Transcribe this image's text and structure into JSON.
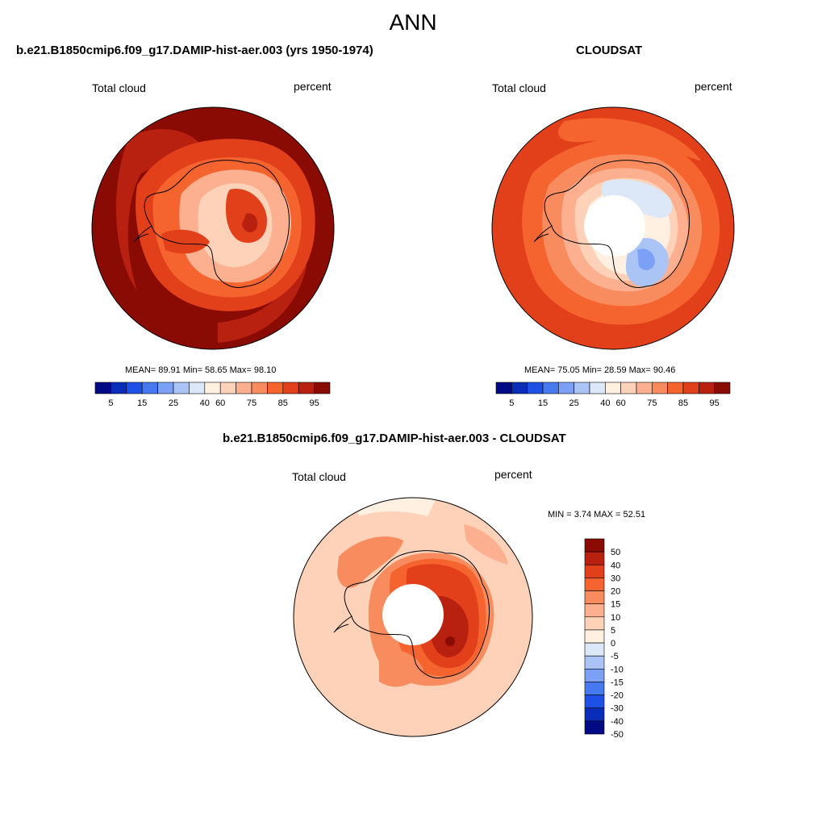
{
  "figure_title": "ANN",
  "panels": [
    {
      "title": "b.e21.B1850cmip6.f09_g17.DAMIP-hist-aer.003 (yrs 1950-1974)",
      "left_label": "Total cloud",
      "right_label": "percent",
      "stats": "MEAN=  89.91  Min=  58.65  Max=  98.10",
      "colorbar_ticks": [
        "5",
        "15",
        "25",
        "40",
        "60",
        "75",
        "85",
        "95"
      ]
    },
    {
      "title": "CLOUDSAT",
      "left_label": "Total cloud",
      "right_label": "percent",
      "stats": "MEAN=  75.05  Min=  28.59  Max=  90.46",
      "colorbar_ticks": [
        "5",
        "15",
        "25",
        "40",
        "60",
        "75",
        "85",
        "95"
      ]
    },
    {
      "title": "b.e21.B1850cmip6.f09_g17.DAMIP-hist-aer.003 - CLOUDSAT",
      "left_label": "Total cloud",
      "right_label": "percent",
      "stats": "MIN =   3.74 MAX =  52.51",
      "colorbar_ticks": [
        "50",
        "40",
        "30",
        "20",
        "15",
        "10",
        "5",
        "0",
        "-5",
        "-10",
        "-15",
        "-20",
        "-30",
        "-40",
        "-50"
      ]
    }
  ],
  "colors": {
    "abs_scale": [
      "#000a85",
      "#0a2db9",
      "#1e50e6",
      "#4678f0",
      "#7ba0f5",
      "#aac4f5",
      "#dce8f8",
      "#fff0e2",
      "#fdd2b8",
      "#fcb090",
      "#f98c5e",
      "#f5642e",
      "#e2401a",
      "#b82010",
      "#8a0a04"
    ],
    "diff_scale": [
      "#8a0a04",
      "#b82010",
      "#e2401a",
      "#f5642e",
      "#f98c5e",
      "#fcb090",
      "#fdd2b8",
      "#fff0e2",
      "#dce8f8",
      "#aac4f5",
      "#7ba0f5",
      "#4678f0",
      "#1e50e6",
      "#0a2db9",
      "#000a85"
    ]
  }
}
